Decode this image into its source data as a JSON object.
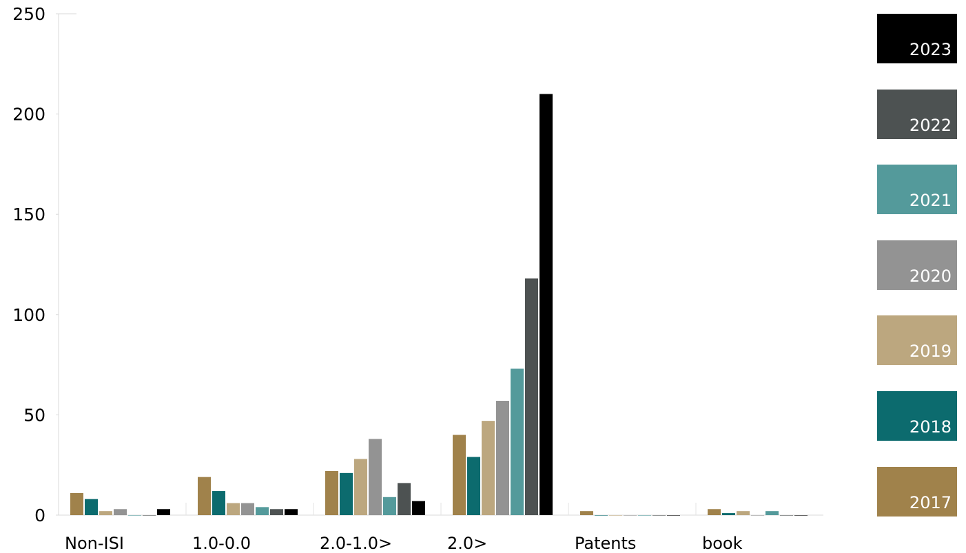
{
  "chart_data": {
    "type": "bar",
    "title": "",
    "xlabel": "",
    "ylabel": "",
    "ylim": [
      0,
      250
    ],
    "yticks": [
      0,
      50,
      100,
      150,
      200,
      250
    ],
    "grid": false,
    "legend_position": "right",
    "categories": [
      "Non-ISI",
      "1.0-0.0",
      "2.0-1.0>",
      "2.0>",
      "Patents",
      "book"
    ],
    "series": [
      {
        "name": "2017",
        "color": "#a0824b",
        "values": [
          11,
          19,
          22,
          40,
          2,
          3
        ]
      },
      {
        "name": "2018",
        "color": "#0c6b6e",
        "values": [
          8,
          12,
          21,
          29,
          0,
          1
        ]
      },
      {
        "name": "2019",
        "color": "#bca77f",
        "values": [
          2,
          6,
          28,
          47,
          0,
          2
        ]
      },
      {
        "name": "2020",
        "color": "#939393",
        "values": [
          3,
          6,
          38,
          57,
          0,
          0
        ]
      },
      {
        "name": "2021",
        "color": "#549a9b",
        "values": [
          0,
          4,
          9,
          73,
          0,
          2
        ]
      },
      {
        "name": "2022",
        "color": "#4d5252",
        "values": [
          0,
          3,
          16,
          118,
          0,
          0
        ]
      },
      {
        "name": "2023",
        "color": "#000000",
        "values": [
          3,
          3,
          7,
          210,
          0,
          0
        ]
      }
    ]
  }
}
